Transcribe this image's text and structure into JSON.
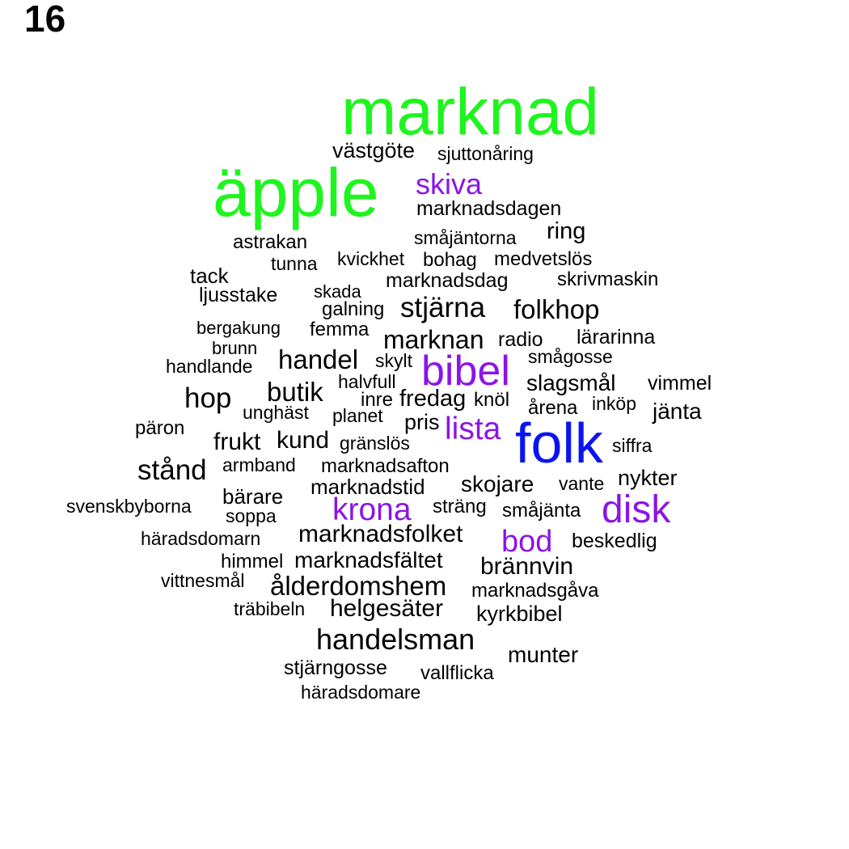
{
  "panel_number": "16",
  "colors": {
    "green": "#1ef51e",
    "blue": "#0a14f0",
    "purple": "#8c14e6",
    "black": "#000000"
  },
  "words": [
    {
      "text": "marknad",
      "color": "green"
    },
    {
      "text": "äpple",
      "color": "green"
    },
    {
      "text": "västgöte",
      "color": "black"
    },
    {
      "text": "sjuttonåring",
      "color": "black"
    },
    {
      "text": "skiva",
      "color": "purple"
    },
    {
      "text": "marknadsdagen",
      "color": "black"
    },
    {
      "text": "ring",
      "color": "black"
    },
    {
      "text": "småjäntorna",
      "color": "black"
    },
    {
      "text": "astrakan",
      "color": "black"
    },
    {
      "text": "tunna",
      "color": "black"
    },
    {
      "text": "kvickhet",
      "color": "black"
    },
    {
      "text": "bohag",
      "color": "black"
    },
    {
      "text": "medvetslös",
      "color": "black"
    },
    {
      "text": "tack",
      "color": "black"
    },
    {
      "text": "ljusstake",
      "color": "black"
    },
    {
      "text": "skada",
      "color": "black"
    },
    {
      "text": "marknadsdag",
      "color": "black"
    },
    {
      "text": "skrivmaskin",
      "color": "black"
    },
    {
      "text": "galning",
      "color": "black"
    },
    {
      "text": "stjärna",
      "color": "black"
    },
    {
      "text": "folkhop",
      "color": "black"
    },
    {
      "text": "bergakung",
      "color": "black"
    },
    {
      "text": "femma",
      "color": "black"
    },
    {
      "text": "marknan",
      "color": "black"
    },
    {
      "text": "radio",
      "color": "black"
    },
    {
      "text": "lärarinna",
      "color": "black"
    },
    {
      "text": "brunn",
      "color": "black"
    },
    {
      "text": "handlande",
      "color": "black"
    },
    {
      "text": "handel",
      "color": "black"
    },
    {
      "text": "skylt",
      "color": "black"
    },
    {
      "text": "bibel",
      "color": "purple"
    },
    {
      "text": "smågosse",
      "color": "black"
    },
    {
      "text": "halvfull",
      "color": "black"
    },
    {
      "text": "slagsmål",
      "color": "black"
    },
    {
      "text": "vimmel",
      "color": "black"
    },
    {
      "text": "hop",
      "color": "black"
    },
    {
      "text": "butik",
      "color": "black"
    },
    {
      "text": "inre",
      "color": "black"
    },
    {
      "text": "fredag",
      "color": "black"
    },
    {
      "text": "knöl",
      "color": "black"
    },
    {
      "text": "årena",
      "color": "black"
    },
    {
      "text": "inköp",
      "color": "black"
    },
    {
      "text": "jänta",
      "color": "black"
    },
    {
      "text": "unghäst",
      "color": "black"
    },
    {
      "text": "planet",
      "color": "black"
    },
    {
      "text": "pris",
      "color": "black"
    },
    {
      "text": "lista",
      "color": "purple"
    },
    {
      "text": "folk",
      "color": "blue"
    },
    {
      "text": "päron",
      "color": "black"
    },
    {
      "text": "frukt",
      "color": "black"
    },
    {
      "text": "kund",
      "color": "black"
    },
    {
      "text": "gränslös",
      "color": "black"
    },
    {
      "text": "siffra",
      "color": "black"
    },
    {
      "text": "stånd",
      "color": "black"
    },
    {
      "text": "armband",
      "color": "black"
    },
    {
      "text": "marknadsafton",
      "color": "black"
    },
    {
      "text": "marknadstid",
      "color": "black"
    },
    {
      "text": "skojare",
      "color": "black"
    },
    {
      "text": "vante",
      "color": "black"
    },
    {
      "text": "nykter",
      "color": "black"
    },
    {
      "text": "bärare",
      "color": "black"
    },
    {
      "text": "svenskbyborna",
      "color": "black"
    },
    {
      "text": "soppa",
      "color": "black"
    },
    {
      "text": "krona",
      "color": "purple"
    },
    {
      "text": "sträng",
      "color": "black"
    },
    {
      "text": "småjänta",
      "color": "black"
    },
    {
      "text": "disk",
      "color": "purple"
    },
    {
      "text": "häradsdomarn",
      "color": "black"
    },
    {
      "text": "marknadsfolket",
      "color": "black"
    },
    {
      "text": "bod",
      "color": "purple"
    },
    {
      "text": "beskedlig",
      "color": "black"
    },
    {
      "text": "himmel",
      "color": "black"
    },
    {
      "text": "marknadsfältet",
      "color": "black"
    },
    {
      "text": "brännvin",
      "color": "black"
    },
    {
      "text": "vittnesmål",
      "color": "black"
    },
    {
      "text": "ålderdomshem",
      "color": "black"
    },
    {
      "text": "marknadsgåva",
      "color": "black"
    },
    {
      "text": "träbibeln",
      "color": "black"
    },
    {
      "text": "helgesäter",
      "color": "black"
    },
    {
      "text": "kyrkbibel",
      "color": "black"
    },
    {
      "text": "handelsman",
      "color": "black"
    },
    {
      "text": "munter",
      "color": "black"
    },
    {
      "text": "stjärngosse",
      "color": "black"
    },
    {
      "text": "vallflicka",
      "color": "black"
    },
    {
      "text": "häradsdomare",
      "color": "black"
    }
  ]
}
